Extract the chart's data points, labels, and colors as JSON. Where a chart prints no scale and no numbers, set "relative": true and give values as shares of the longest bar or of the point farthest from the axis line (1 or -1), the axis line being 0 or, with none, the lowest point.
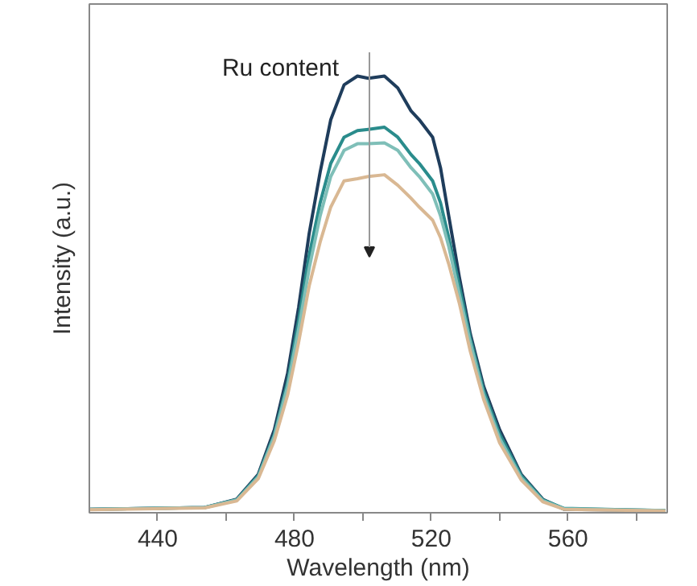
{
  "chart_data": {
    "type": "line",
    "relative": true,
    "xlabel": "Wavelength (nm)",
    "ylabel": "Intensity (a.u.)",
    "x": [
      420,
      453.7,
      463.1,
      469.4,
      474.1,
      478,
      481.2,
      484.3,
      487.5,
      490.6,
      494.5,
      498.4,
      501.6,
      506.3,
      510.2,
      514.1,
      516.5,
      520.4,
      522.7,
      525.1,
      528.2,
      531.4,
      535.3,
      540,
      546.3,
      552.6,
      558.8,
      588.5
    ],
    "series": [
      {
        "color": "#1f3d5c",
        "values": [
          0.008,
          0.012,
          0.031,
          0.088,
          0.19,
          0.32,
          0.47,
          0.64,
          0.78,
          0.9,
          0.98,
          1.0,
          0.995,
          1.0,
          0.973,
          0.92,
          0.9,
          0.86,
          0.79,
          0.68,
          0.54,
          0.41,
          0.29,
          0.19,
          0.088,
          0.031,
          0.008,
          0.005
        ]
      },
      {
        "color": "#2a8c8c",
        "values": [
          0.008,
          0.012,
          0.03,
          0.085,
          0.18,
          0.3,
          0.44,
          0.59,
          0.71,
          0.8,
          0.86,
          0.875,
          0.878,
          0.883,
          0.86,
          0.82,
          0.8,
          0.76,
          0.71,
          0.63,
          0.52,
          0.4,
          0.28,
          0.18,
          0.085,
          0.03,
          0.01,
          0.005
        ]
      },
      {
        "color": "#7fbfb8",
        "values": [
          0.008,
          0.012,
          0.029,
          0.082,
          0.175,
          0.29,
          0.42,
          0.56,
          0.68,
          0.77,
          0.83,
          0.845,
          0.845,
          0.847,
          0.83,
          0.79,
          0.77,
          0.73,
          0.68,
          0.61,
          0.5,
          0.39,
          0.27,
          0.17,
          0.08,
          0.028,
          0.009,
          0.005
        ]
      },
      {
        "color": "#d9b893",
        "values": [
          0.007,
          0.011,
          0.027,
          0.078,
          0.165,
          0.27,
          0.39,
          0.52,
          0.62,
          0.7,
          0.76,
          0.765,
          0.77,
          0.774,
          0.75,
          0.72,
          0.7,
          0.67,
          0.63,
          0.57,
          0.48,
          0.37,
          0.26,
          0.16,
          0.075,
          0.025,
          0.008,
          0.004
        ]
      }
    ],
    "xlim": [
      420,
      589
    ],
    "xticks": [
      440,
      {
        "value": 460,
        "label": null
      },
      480,
      {
        "value": 500,
        "label": null
      },
      520,
      {
        "value": 540,
        "label": null
      },
      560,
      {
        "value": 580,
        "label": null
      }
    ],
    "annotations": [
      "Ru content"
    ],
    "grid": false,
    "line_style": "solid",
    "marker": "none"
  }
}
